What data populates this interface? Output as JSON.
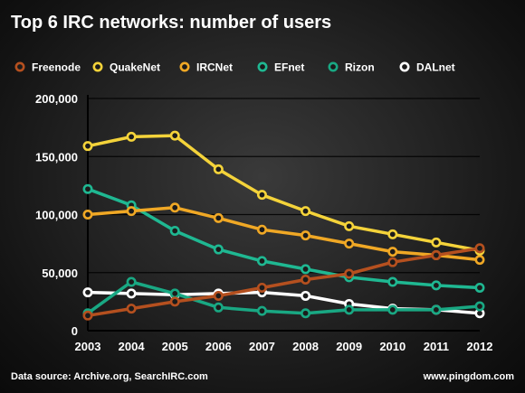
{
  "title": "Top 6 IRC networks: number of users",
  "footer": {
    "source": "Data source: Archive.org, SearchIRC.com",
    "website": "www.pingdom.com"
  },
  "chart_data": {
    "type": "line",
    "title": "Top 6 IRC networks: number of users",
    "xlabel": "",
    "ylabel": "",
    "categories": [
      "2003",
      "2004",
      "2005",
      "2006",
      "2007",
      "2008",
      "2009",
      "2010",
      "2011",
      "2012"
    ],
    "ylim": [
      0,
      200000
    ],
    "yticks": [
      0,
      50000,
      100000,
      150000,
      200000
    ],
    "ytick_labels": [
      "0",
      "50,000",
      "100,000",
      "150,000",
      "200,000"
    ],
    "grid": "horizontal",
    "legend_position": "top",
    "series": [
      {
        "name": "Freenode",
        "color": "#b5501f",
        "values": [
          13000,
          19000,
          25000,
          30000,
          37000,
          44000,
          49000,
          59000,
          65000,
          71000
        ]
      },
      {
        "name": "QuakeNet",
        "color": "#f4d33a",
        "values": [
          159000,
          167000,
          168000,
          139000,
          117000,
          103000,
          90000,
          83000,
          76000,
          69000
        ]
      },
      {
        "name": "IRCNet",
        "color": "#f0a825",
        "values": [
          100000,
          103000,
          106000,
          97000,
          87000,
          82000,
          75000,
          68000,
          65000,
          61000
        ]
      },
      {
        "name": "EFnet",
        "color": "#1fb892",
        "values": [
          122000,
          108000,
          86000,
          70000,
          60000,
          53000,
          46000,
          42000,
          39000,
          37000
        ]
      },
      {
        "name": "Rizon",
        "color": "#19a883",
        "values": [
          15000,
          42000,
          32000,
          20000,
          17000,
          15000,
          18000,
          18000,
          18000,
          21000
        ]
      },
      {
        "name": "DALnet",
        "color": "#ffffff",
        "values": [
          33000,
          32000,
          31000,
          32000,
          33000,
          30000,
          23000,
          19000,
          18000,
          15000
        ]
      }
    ]
  }
}
